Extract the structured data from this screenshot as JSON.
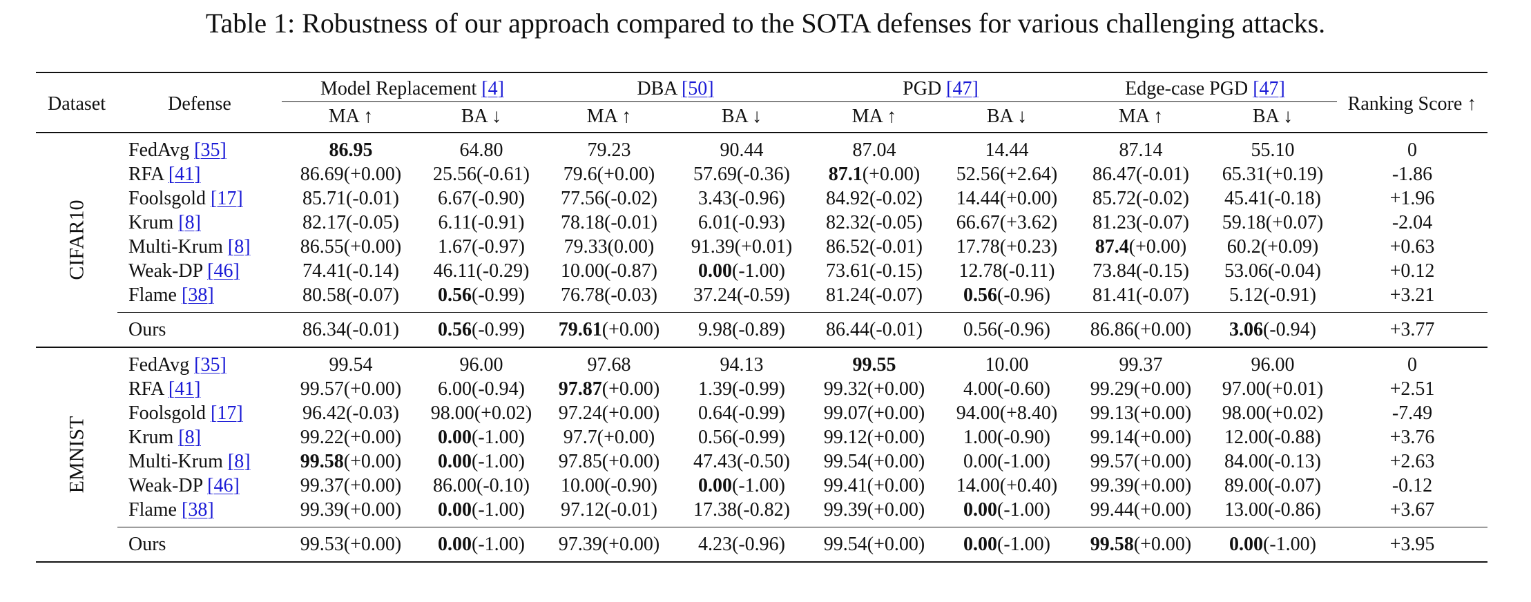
{
  "caption": "Table 1: Robustness of our approach compared to the SOTA defenses for various challenging attacks.",
  "header": {
    "dataset": "Dataset",
    "defense": "Defense",
    "ranking": "Ranking Score ↑",
    "groups": [
      {
        "name": "Model Replacement",
        "ref": "[4]"
      },
      {
        "name": "DBA",
        "ref": "[50]"
      },
      {
        "name": "PGD",
        "ref": "[47]"
      },
      {
        "name": "Edge-case PGD",
        "ref": "[47]"
      }
    ],
    "ma": "MA ↑",
    "ba": "BA ↓"
  },
  "sections": [
    {
      "dataset": "CIFAR10",
      "rows": [
        {
          "name": "FedAvg",
          "ref": "[35]",
          "cells": [
            {
              "b": "86.95",
              "r": ""
            },
            {
              "b": "",
              "r": "64.80"
            },
            {
              "b": "",
              "r": "79.23"
            },
            {
              "b": "",
              "r": "90.44"
            },
            {
              "b": "",
              "r": "87.04"
            },
            {
              "b": "",
              "r": "14.44"
            },
            {
              "b": "",
              "r": "87.14"
            },
            {
              "b": "",
              "r": "55.10"
            }
          ],
          "score": "0",
          "score_bold": false
        },
        {
          "name": "RFA",
          "ref": "[41]",
          "cells": [
            {
              "b": "",
              "r": "86.69(+0.00)"
            },
            {
              "b": "",
              "r": "25.56(-0.61)"
            },
            {
              "b": "",
              "r": "79.6(+0.00)"
            },
            {
              "b": "",
              "r": "57.69(-0.36)"
            },
            {
              "b": "87.1",
              "r": "(+0.00)"
            },
            {
              "b": "",
              "r": "52.56(+2.64)"
            },
            {
              "b": "",
              "r": "86.47(-0.01)"
            },
            {
              "b": "",
              "r": "65.31(+0.19)"
            }
          ],
          "score": "-1.86",
          "score_bold": false
        },
        {
          "name": "Foolsgold",
          "ref": "[17]",
          "cells": [
            {
              "b": "",
              "r": "85.71(-0.01)"
            },
            {
              "b": "",
              "r": "6.67(-0.90)"
            },
            {
              "b": "",
              "r": "77.56(-0.02)"
            },
            {
              "b": "",
              "r": "3.43(-0.96)"
            },
            {
              "b": "",
              "r": "84.92(-0.02)"
            },
            {
              "b": "",
              "r": "14.44(+0.00)"
            },
            {
              "b": "",
              "r": "85.72(-0.02)"
            },
            {
              "b": "",
              "r": "45.41(-0.18)"
            }
          ],
          "score": "+1.96",
          "score_bold": false
        },
        {
          "name": "Krum",
          "ref": "[8]",
          "cells": [
            {
              "b": "",
              "r": "82.17(-0.05)"
            },
            {
              "b": "",
              "r": "6.11(-0.91)"
            },
            {
              "b": "",
              "r": "78.18(-0.01)"
            },
            {
              "b": "",
              "r": "6.01(-0.93)"
            },
            {
              "b": "",
              "r": "82.32(-0.05)"
            },
            {
              "b": "",
              "r": "66.67(+3.62)"
            },
            {
              "b": "",
              "r": "81.23(-0.07)"
            },
            {
              "b": "",
              "r": "59.18(+0.07)"
            }
          ],
          "score": "-2.04",
          "score_bold": false
        },
        {
          "name": "Multi-Krum",
          "ref": "[8]",
          "cells": [
            {
              "b": "",
              "r": "86.55(+0.00)"
            },
            {
              "b": "",
              "r": "1.67(-0.97)"
            },
            {
              "b": "",
              "r": "79.33(0.00)"
            },
            {
              "b": "",
              "r": "91.39(+0.01)"
            },
            {
              "b": "",
              "r": "86.52(-0.01)"
            },
            {
              "b": "",
              "r": "17.78(+0.23)"
            },
            {
              "b": "87.4",
              "r": "(+0.00)"
            },
            {
              "b": "",
              "r": "60.2(+0.09)"
            }
          ],
          "score": "+0.63",
          "score_bold": false
        },
        {
          "name": "Weak-DP",
          "ref": "[46]",
          "cells": [
            {
              "b": "",
              "r": "74.41(-0.14)"
            },
            {
              "b": "",
              "r": "46.11(-0.29)"
            },
            {
              "b": "",
              "r": "10.00(-0.87)"
            },
            {
              "b": "0.00",
              "r": "(-1.00)"
            },
            {
              "b": "",
              "r": "73.61(-0.15)"
            },
            {
              "b": "",
              "r": "12.78(-0.11)"
            },
            {
              "b": "",
              "r": "73.84(-0.15)"
            },
            {
              "b": "",
              "r": "53.06(-0.04)"
            }
          ],
          "score": "+0.12",
          "score_bold": false
        },
        {
          "name": "Flame",
          "ref": "[38]",
          "cells": [
            {
              "b": "",
              "r": "80.58(-0.07)"
            },
            {
              "b": "0.56",
              "r": "(-0.99)"
            },
            {
              "b": "",
              "r": "76.78(-0.03)"
            },
            {
              "b": "",
              "r": "37.24(-0.59)"
            },
            {
              "b": "",
              "r": "81.24(-0.07)"
            },
            {
              "b": "0.56",
              "r": "(-0.96)"
            },
            {
              "b": "",
              "r": "81.41(-0.07)"
            },
            {
              "b": "",
              "r": "5.12(-0.91)"
            }
          ],
          "score": "+3.21",
          "score_bold": false
        }
      ],
      "ours": {
        "name": "Ours",
        "cells": [
          {
            "b": "",
            "r": "86.34(-0.01)"
          },
          {
            "b": "0.56",
            "r": "(-0.99)"
          },
          {
            "b": "79.61",
            "r": "(+0.00)"
          },
          {
            "b": "",
            "r": "9.98(-0.89)"
          },
          {
            "b": "",
            "r": "86.44(-0.01)"
          },
          {
            "b": "",
            "r": "0.56(-0.96)"
          },
          {
            "b": "",
            "r": "86.86(+0.00)"
          },
          {
            "b": "3.06",
            "r": "(-0.94)"
          }
        ],
        "score": "+3.77",
        "score_bold": true
      }
    },
    {
      "dataset": "EMNIST",
      "rows": [
        {
          "name": "FedAvg",
          "ref": "[35]",
          "cells": [
            {
              "b": "",
              "r": "99.54"
            },
            {
              "b": "",
              "r": "96.00"
            },
            {
              "b": "",
              "r": "97.68"
            },
            {
              "b": "",
              "r": "94.13"
            },
            {
              "b": "99.55",
              "r": ""
            },
            {
              "b": "",
              "r": "10.00"
            },
            {
              "b": "",
              "r": "99.37"
            },
            {
              "b": "",
              "r": "96.00"
            }
          ],
          "score": "0",
          "score_bold": false
        },
        {
          "name": "RFA",
          "ref": "[41]",
          "cells": [
            {
              "b": "",
              "r": "99.57(+0.00)"
            },
            {
              "b": "",
              "r": "6.00(-0.94)"
            },
            {
              "b": "97.87",
              "r": "(+0.00)"
            },
            {
              "b": "",
              "r": "1.39(-0.99)"
            },
            {
              "b": "",
              "r": "99.32(+0.00)"
            },
            {
              "b": "",
              "r": "4.00(-0.60)"
            },
            {
              "b": "",
              "r": "99.29(+0.00)"
            },
            {
              "b": "",
              "r": "97.00(+0.01)"
            }
          ],
          "score": "+2.51",
          "score_bold": false
        },
        {
          "name": "Foolsgold",
          "ref": "[17]",
          "cells": [
            {
              "b": "",
              "r": "96.42(-0.03)"
            },
            {
              "b": "",
              "r": "98.00(+0.02)"
            },
            {
              "b": "",
              "r": "97.24(+0.00)"
            },
            {
              "b": "",
              "r": "0.64(-0.99)"
            },
            {
              "b": "",
              "r": "99.07(+0.00)"
            },
            {
              "b": "",
              "r": "94.00(+8.40)"
            },
            {
              "b": "",
              "r": "99.13(+0.00)"
            },
            {
              "b": "",
              "r": "98.00(+0.02)"
            }
          ],
          "score": "-7.49",
          "score_bold": false
        },
        {
          "name": "Krum",
          "ref": "[8]",
          "cells": [
            {
              "b": "",
              "r": "99.22(+0.00)"
            },
            {
              "b": "0.00",
              "r": "(-1.00)"
            },
            {
              "b": "",
              "r": "97.7(+0.00)"
            },
            {
              "b": "",
              "r": "0.56(-0.99)"
            },
            {
              "b": "",
              "r": "99.12(+0.00)"
            },
            {
              "b": "",
              "r": "1.00(-0.90)"
            },
            {
              "b": "",
              "r": "99.14(+0.00)"
            },
            {
              "b": "",
              "r": "12.00(-0.88)"
            }
          ],
          "score": "+3.76",
          "score_bold": false
        },
        {
          "name": "Multi-Krum",
          "ref": "[8]",
          "cells": [
            {
              "b": "99.58",
              "r": "(+0.00)"
            },
            {
              "b": "0.00",
              "r": "(-1.00)"
            },
            {
              "b": "",
              "r": "97.85(+0.00)"
            },
            {
              "b": "",
              "r": "47.43(-0.50)"
            },
            {
              "b": "",
              "r": "99.54(+0.00)"
            },
            {
              "b": "",
              "r": "0.00(-1.00)"
            },
            {
              "b": "",
              "r": "99.57(+0.00)"
            },
            {
              "b": "",
              "r": "84.00(-0.13)"
            }
          ],
          "score": "+2.63",
          "score_bold": false
        },
        {
          "name": "Weak-DP",
          "ref": "[46]",
          "cells": [
            {
              "b": "",
              "r": "99.37(+0.00)"
            },
            {
              "b": "",
              "r": "86.00(-0.10)"
            },
            {
              "b": "",
              "r": "10.00(-0.90)"
            },
            {
              "b": "0.00",
              "r": "(-1.00)"
            },
            {
              "b": "",
              "r": "99.41(+0.00)"
            },
            {
              "b": "",
              "r": "14.00(+0.40)"
            },
            {
              "b": "",
              "r": "99.39(+0.00)"
            },
            {
              "b": "",
              "r": "89.00(-0.07)"
            }
          ],
          "score": "-0.12",
          "score_bold": false
        },
        {
          "name": "Flame",
          "ref": "[38]",
          "cells": [
            {
              "b": "",
              "r": "99.39(+0.00)"
            },
            {
              "b": "0.00",
              "r": "(-1.00)"
            },
            {
              "b": "",
              "r": "97.12(-0.01)"
            },
            {
              "b": "",
              "r": "17.38(-0.82)"
            },
            {
              "b": "",
              "r": "99.39(+0.00)"
            },
            {
              "b": "0.00",
              "r": "(-1.00)"
            },
            {
              "b": "",
              "r": "99.44(+0.00)"
            },
            {
              "b": "",
              "r": "13.00(-0.86)"
            }
          ],
          "score": "+3.67",
          "score_bold": false
        }
      ],
      "ours": {
        "name": "Ours",
        "cells": [
          {
            "b": "",
            "r": "99.53(+0.00)"
          },
          {
            "b": "0.00",
            "r": "(-1.00)"
          },
          {
            "b": "",
            "r": "97.39(+0.00)"
          },
          {
            "b": "",
            "r": "4.23(-0.96)"
          },
          {
            "b": "",
            "r": "99.54(+0.00)"
          },
          {
            "b": "0.00",
            "r": "(-1.00)"
          },
          {
            "b": "99.58",
            "r": "(+0.00)"
          },
          {
            "b": "0.00",
            "r": "(-1.00)"
          }
        ],
        "score": "+3.95",
        "score_bold": true
      }
    }
  ]
}
